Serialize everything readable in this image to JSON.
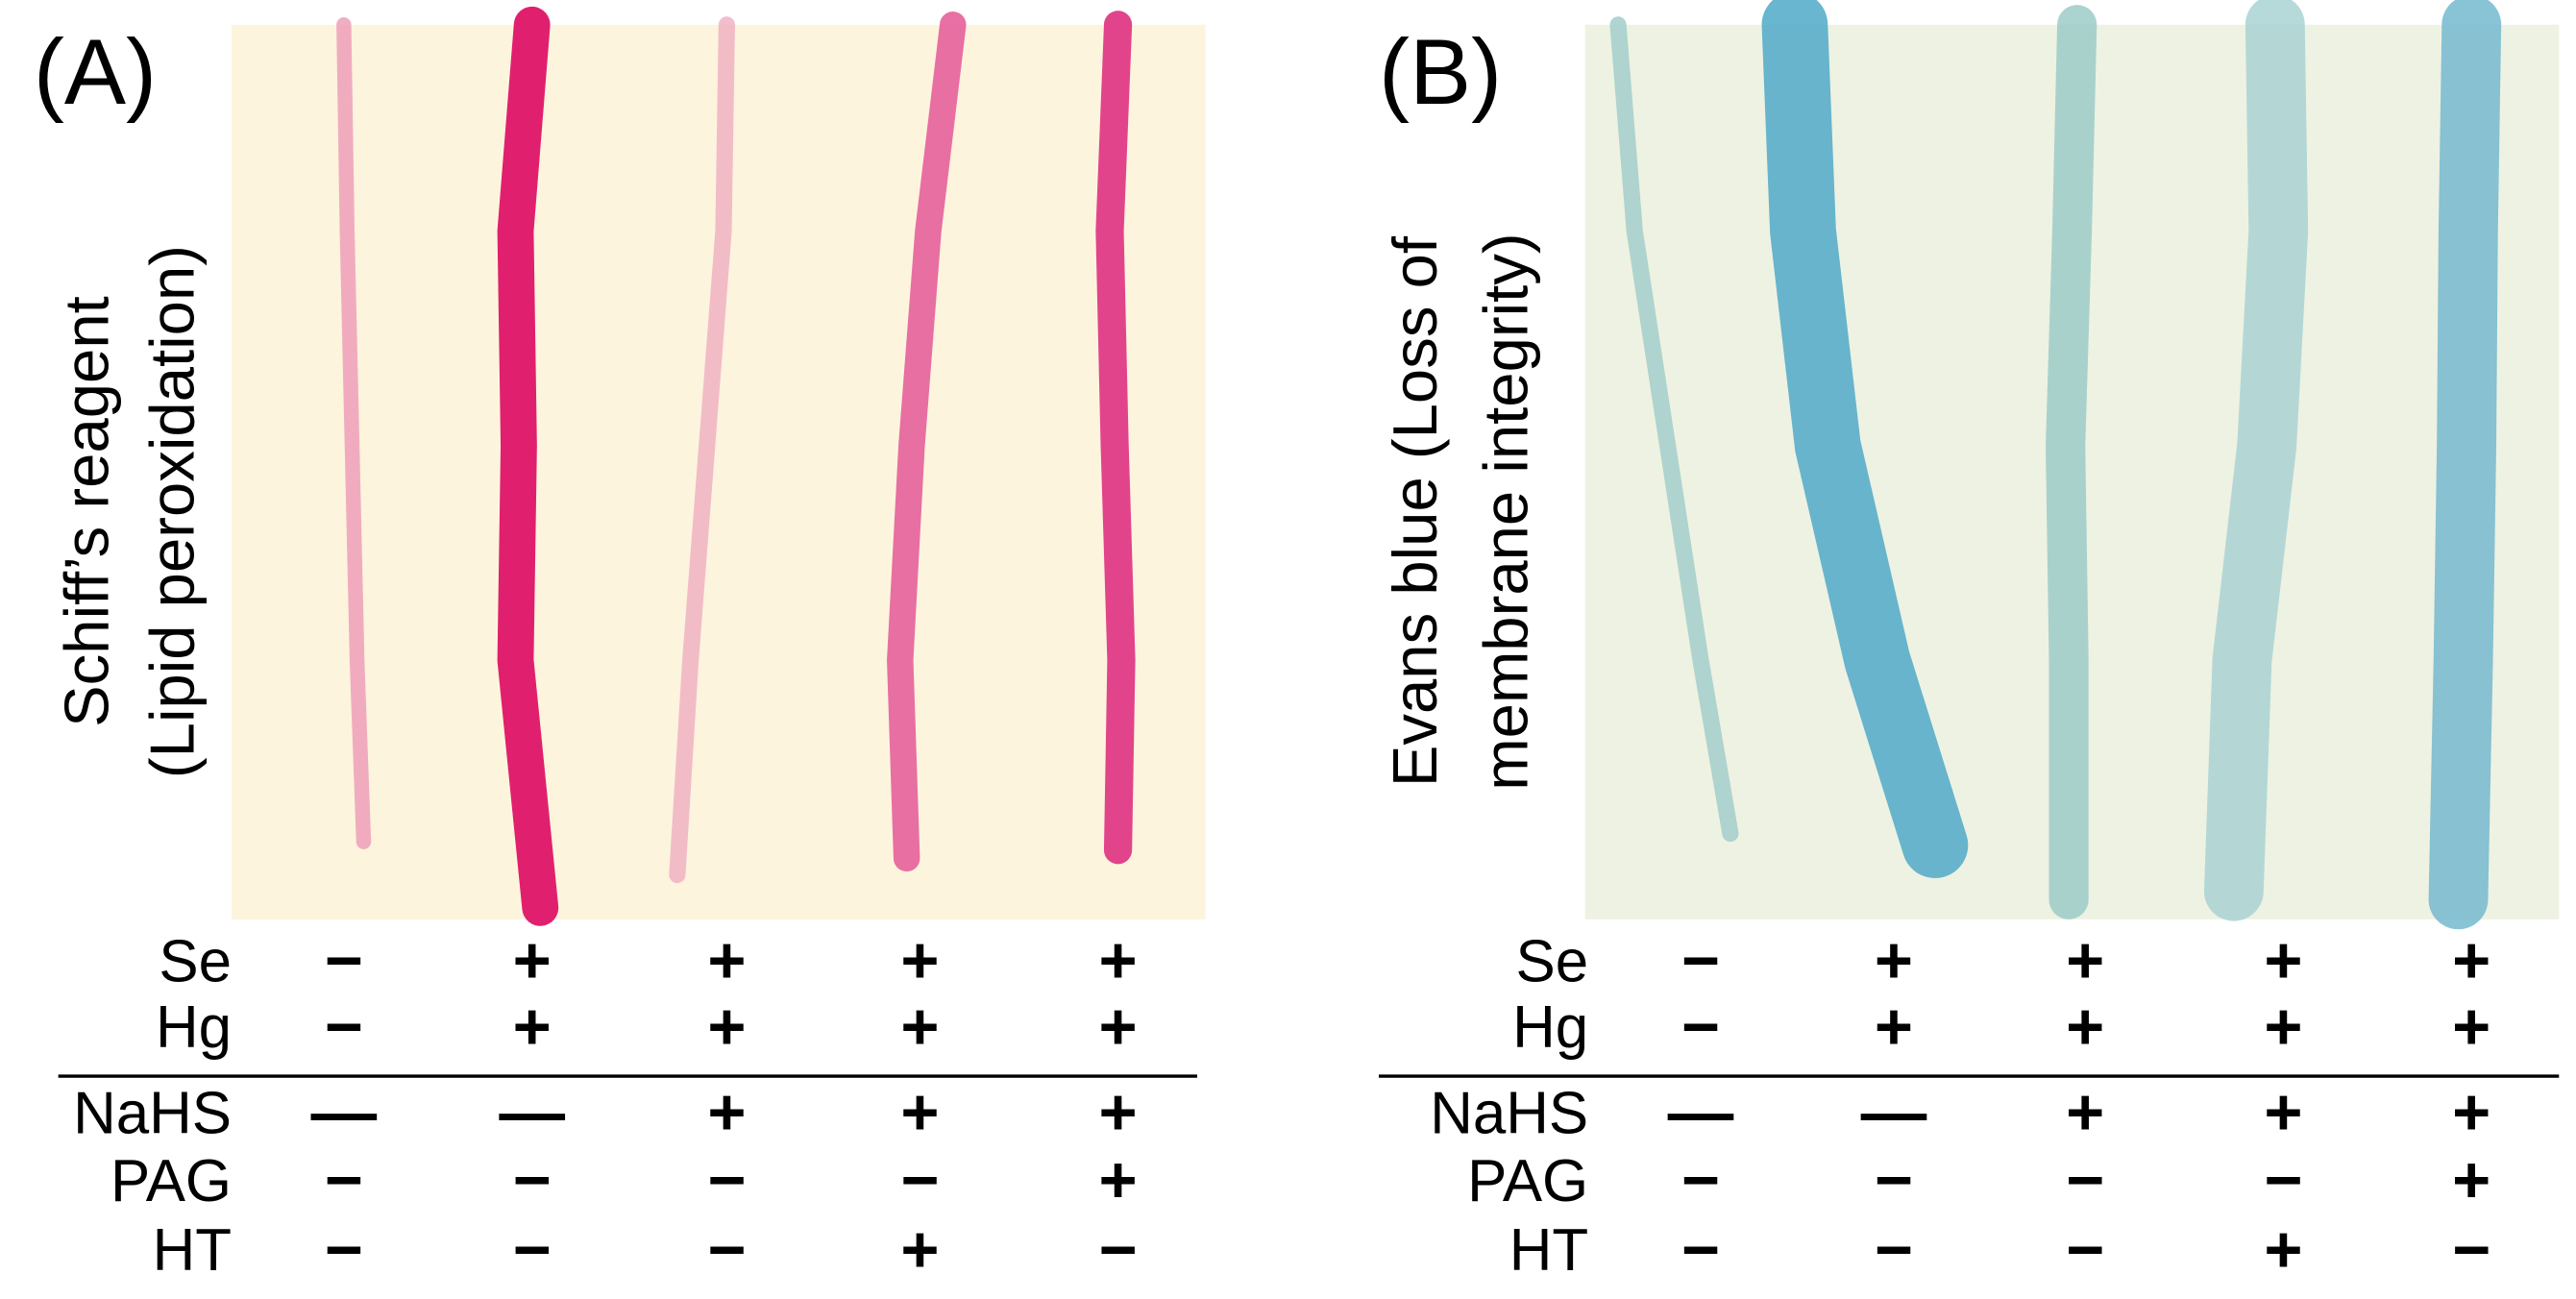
{
  "panels": [
    {
      "label": "(A)",
      "stain": "Schiff’s reagent",
      "measure": "(Lipid peroxidation)",
      "treatments": [
        {
          "name": "Se",
          "signs": [
            "−",
            "+",
            "+",
            "+",
            "+"
          ]
        },
        {
          "name": "Hg",
          "signs": [
            "−",
            "+",
            "+",
            "+",
            "+"
          ]
        },
        {
          "name": "NaHS",
          "signs": [
            "—",
            "—",
            "+",
            "+",
            "+"
          ]
        },
        {
          "name": "PAG",
          "signs": [
            "−",
            "−",
            "−",
            "−",
            "+"
          ]
        },
        {
          "name": "HT",
          "signs": [
            "−",
            "−",
            "−",
            "+",
            "−"
          ]
        }
      ]
    },
    {
      "label": "(B)",
      "stain": "Evans blue (Loss of",
      "measure": "membrane integrity)",
      "treatments": [
        {
          "name": "Se",
          "signs": [
            "−",
            "+",
            "+",
            "+",
            "+"
          ]
        },
        {
          "name": "Hg",
          "signs": [
            "−",
            "+",
            "+",
            "+",
            "+"
          ]
        },
        {
          "name": "NaHS",
          "signs": [
            "—",
            "—",
            "+",
            "+",
            "+"
          ]
        },
        {
          "name": "PAG",
          "signs": [
            "−",
            "−",
            "−",
            "−",
            "+"
          ]
        },
        {
          "name": "HT",
          "signs": [
            "−",
            "−",
            "−",
            "+",
            "−"
          ]
        }
      ]
    }
  ]
}
